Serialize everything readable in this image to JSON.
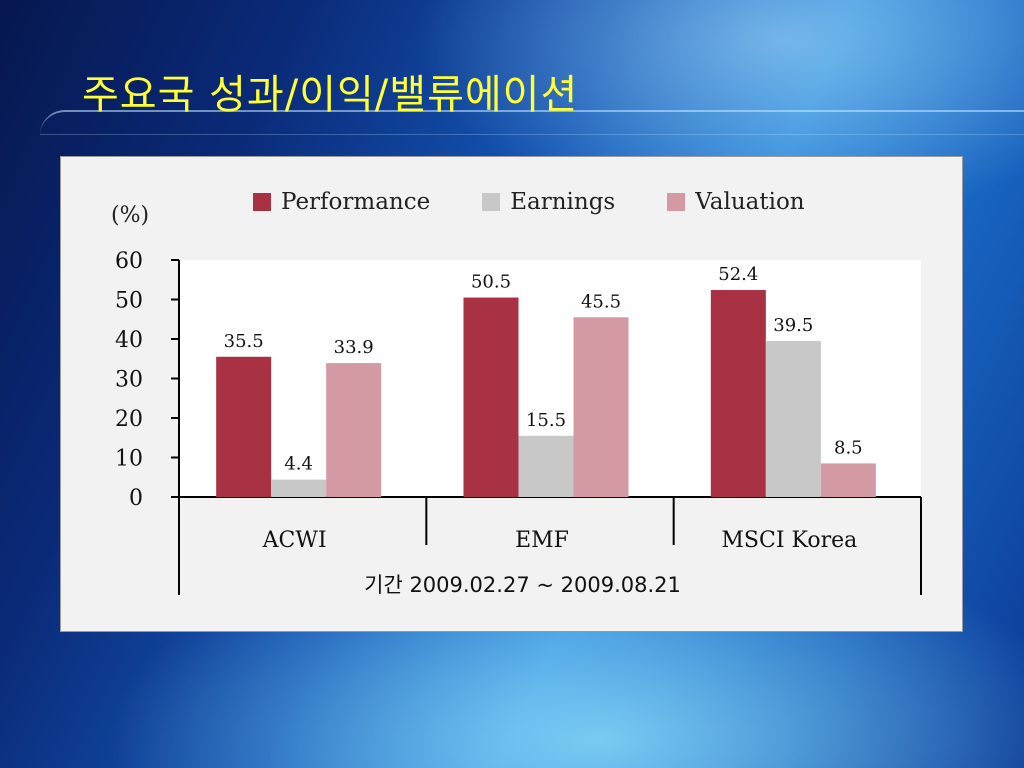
{
  "slide": {
    "title": "주요국 성과/이익/밸류에이션"
  },
  "chart_data": {
    "type": "bar",
    "unit_label": "(%)",
    "categories": [
      "ACWI",
      "EMF",
      "MSCI Korea"
    ],
    "series": [
      {
        "name": "Performance",
        "values": [
          35.5,
          50.5,
          52.4
        ],
        "color": "#a83244"
      },
      {
        "name": "Earnings",
        "values": [
          4.4,
          15.5,
          39.5
        ],
        "color": "#c8c8c8"
      },
      {
        "name": "Valuation",
        "values": [
          33.9,
          45.5,
          8.5
        ],
        "color": "#d49aa4"
      }
    ],
    "y_ticks": [
      "0",
      "10",
      "20",
      "30",
      "40",
      "50",
      "60"
    ],
    "ylim": [
      0,
      60
    ],
    "legend_position": "top",
    "grid": false,
    "period_label": "기간 2009.02.27 ~ 2009.08.21"
  }
}
